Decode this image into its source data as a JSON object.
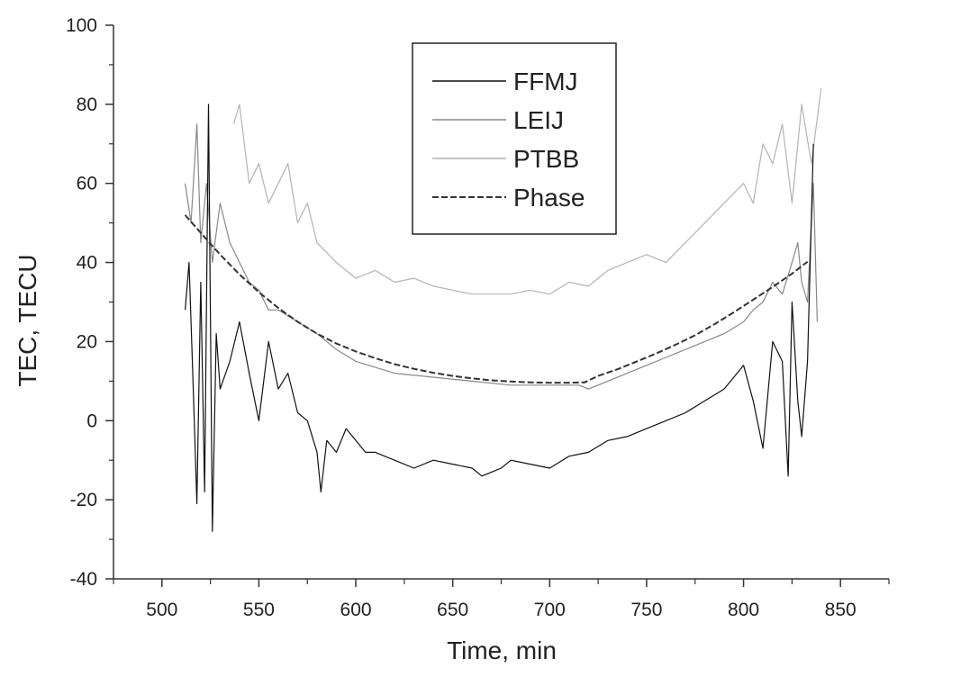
{
  "chart_data": {
    "type": "line",
    "title": "",
    "xlabel": "Time, min",
    "ylabel": "TEC, TECU",
    "xlim": [
      475,
      875
    ],
    "ylim": [
      -40,
      100
    ],
    "x_ticks": [
      500,
      550,
      600,
      650,
      700,
      750,
      800,
      850
    ],
    "y_ticks": [
      -40,
      -20,
      0,
      20,
      40,
      60,
      80,
      100
    ],
    "grid": false,
    "legend": {
      "position": "top-center",
      "frame": true
    },
    "series": [
      {
        "name": "FFMJ",
        "color": "#111111",
        "dash": "solid",
        "x": [
          512,
          514,
          516,
          518,
          520,
          522,
          524,
          526,
          528,
          530,
          535,
          540,
          545,
          550,
          555,
          560,
          565,
          570,
          575,
          580,
          582,
          585,
          590,
          595,
          600,
          605,
          610,
          620,
          630,
          640,
          650,
          660,
          665,
          670,
          675,
          680,
          690,
          700,
          710,
          720,
          730,
          740,
          750,
          760,
          770,
          780,
          790,
          800,
          805,
          810,
          815,
          820,
          823,
          825,
          828,
          830,
          833,
          836
        ],
        "values": [
          28,
          40,
          10,
          -21,
          35,
          -18,
          80,
          -28,
          22,
          8,
          15,
          25,
          12,
          0,
          20,
          8,
          12,
          2,
          0,
          -8,
          -18,
          -5,
          -8,
          -2,
          -5,
          -8,
          -8,
          -10,
          -12,
          -10,
          -11,
          -12,
          -14,
          -13,
          -12,
          -10,
          -11,
          -12,
          -9,
          -8,
          -5,
          -4,
          -2,
          0,
          2,
          5,
          8,
          14,
          5,
          -7,
          20,
          15,
          -14,
          30,
          5,
          -4,
          15,
          70
        ]
      },
      {
        "name": "LEIJ",
        "color": "#888888",
        "dash": "solid",
        "x": [
          512,
          515,
          518,
          520,
          523,
          526,
          530,
          535,
          540,
          545,
          550,
          555,
          560,
          570,
          580,
          590,
          600,
          620,
          640,
          660,
          680,
          700,
          715,
          720,
          730,
          740,
          750,
          760,
          770,
          780,
          790,
          800,
          805,
          810,
          815,
          820,
          825,
          828,
          830,
          833,
          836,
          838
        ],
        "values": [
          60,
          50,
          75,
          45,
          60,
          40,
          55,
          45,
          40,
          35,
          33,
          28,
          28,
          25,
          22,
          18,
          15,
          12,
          11,
          10,
          9,
          9,
          9,
          8,
          10,
          12,
          14,
          16,
          18,
          20,
          22,
          25,
          28,
          30,
          35,
          32,
          40,
          45,
          35,
          30,
          60,
          25
        ]
      },
      {
        "name": "PTBB",
        "color": "#b4b4b4",
        "dash": "solid",
        "x": [
          537,
          540,
          545,
          550,
          555,
          560,
          565,
          570,
          575,
          580,
          590,
          600,
          610,
          620,
          630,
          640,
          650,
          660,
          670,
          680,
          690,
          700,
          710,
          720,
          730,
          740,
          750,
          760,
          770,
          780,
          790,
          800,
          805,
          810,
          815,
          820,
          825,
          830,
          835,
          840
        ],
        "values": [
          75,
          80,
          60,
          65,
          55,
          60,
          65,
          50,
          55,
          45,
          40,
          36,
          38,
          35,
          36,
          34,
          33,
          32,
          32,
          32,
          33,
          32,
          35,
          34,
          38,
          40,
          42,
          40,
          45,
          50,
          55,
          60,
          55,
          70,
          65,
          75,
          55,
          80,
          65,
          84
        ]
      },
      {
        "name": "Phase",
        "color": "#333333",
        "dash": "dashed",
        "x": [
          512,
          520,
          530,
          540,
          550,
          560,
          570,
          580,
          590,
          600,
          610,
          620,
          630,
          640,
          650,
          660,
          670,
          680,
          690,
          700,
          710,
          718,
          725,
          735,
          745,
          755,
          765,
          775,
          785,
          795,
          805,
          815,
          825,
          833
        ],
        "values": [
          52,
          47.5,
          42,
          37,
          32.5,
          28.5,
          25,
          22,
          19.5,
          17.5,
          15.8,
          14.3,
          13.1,
          12.1,
          11.3,
          10.7,
          10.2,
          9.9,
          9.7,
          9.6,
          9.6,
          9.7,
          11.3,
          13,
          15,
          17,
          19.2,
          21.6,
          24.4,
          27.4,
          30.6,
          33.8,
          37.2,
          40.2
        ]
      }
    ]
  }
}
